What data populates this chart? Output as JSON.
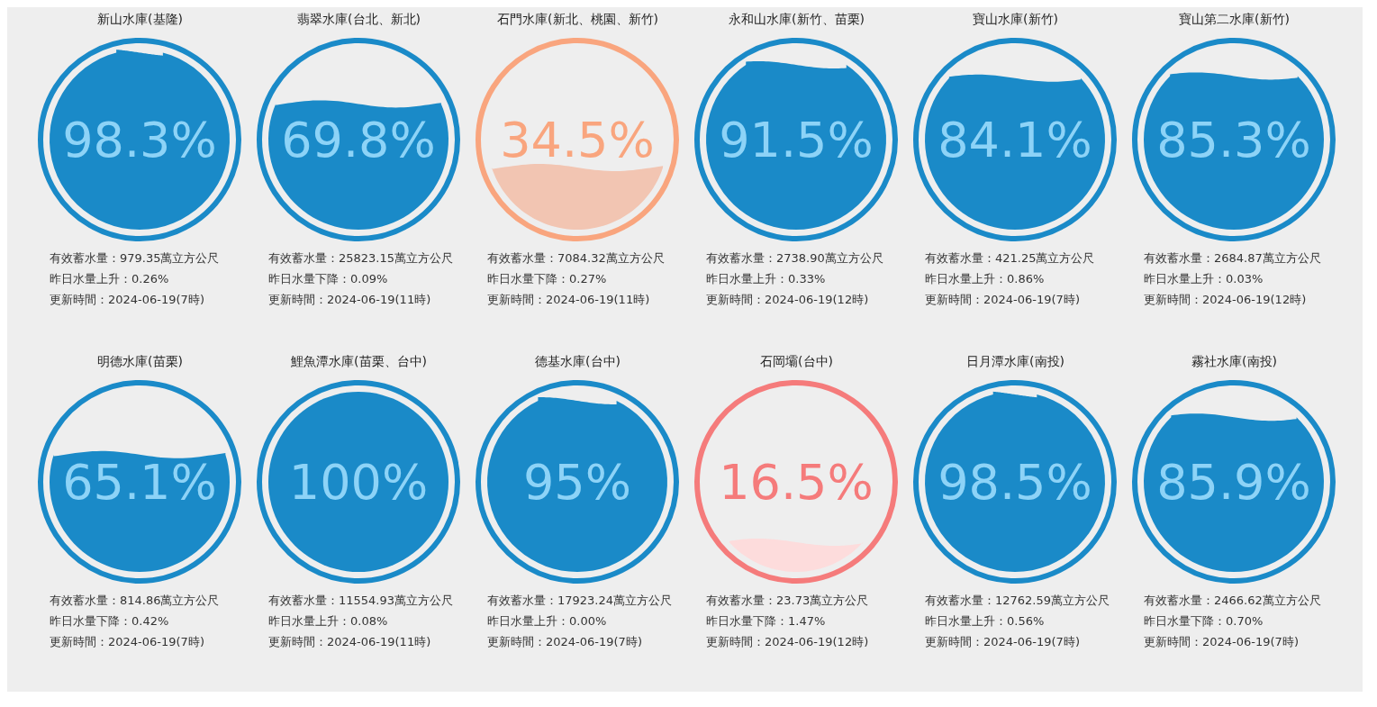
{
  "chart_data": [
    {
      "type": "other",
      "title": "新山水庫(基隆)",
      "values": [
        98.3
      ],
      "value_labels": [
        "98.3%"
      ],
      "color": "#1a8ac8",
      "colors": [
        "#1a8ac8"
      ],
      "annotations": [
        "有效蓄水量：979.35萬立方公尺",
        "昨日水量上升：0.26%",
        "更新時間：2024-06-19(7時)"
      ]
    },
    {
      "type": "other",
      "title": "翡翠水庫(台北、新北)",
      "values": [
        69.8
      ],
      "value_labels": [
        "69.8%"
      ],
      "color": "#1a8ac8",
      "colors": [
        "#1a8ac8"
      ],
      "annotations": [
        "有效蓄水量：25823.15萬立方公尺",
        "昨日水量下降：0.09%",
        "更新時間：2024-06-19(11時)"
      ]
    },
    {
      "type": "other",
      "title": "石門水庫(新北、桃園、新竹)",
      "values": [
        34.5
      ],
      "value_labels": [
        "34.5%"
      ],
      "color": "#f9a57e",
      "colors": [
        "#f2c5b2"
      ],
      "annotations": [
        "有效蓄水量：7084.32萬立方公尺",
        "昨日水量下降：0.27%",
        "更新時間：2024-06-19(11時)"
      ]
    },
    {
      "type": "other",
      "title": "永和山水庫(新竹、苗栗)",
      "values": [
        91.5
      ],
      "value_labels": [
        "91.5%"
      ],
      "color": "#1a8ac8",
      "colors": [
        "#1a8ac8"
      ],
      "annotations": [
        "有效蓄水量：2738.90萬立方公尺",
        "昨日水量上升：0.33%",
        "更新時間：2024-06-19(12時)"
      ]
    },
    {
      "type": "other",
      "title": "寶山水庫(新竹)",
      "values": [
        84.1
      ],
      "value_labels": [
        "84.1%"
      ],
      "color": "#1a8ac8",
      "colors": [
        "#1a8ac8"
      ],
      "annotations": [
        "有效蓄水量：421.25萬立方公尺",
        "昨日水量上升：0.86%",
        "更新時間：2024-06-19(7時)"
      ]
    },
    {
      "type": "other",
      "title": "寶山第二水庫(新竹)",
      "values": [
        85.3
      ],
      "value_labels": [
        "85.3%"
      ],
      "color": "#1a8ac8",
      "colors": [
        "#1a8ac8"
      ],
      "annotations": [
        "有效蓄水量：2684.87萬立方公尺",
        "昨日水量上升：0.03%",
        "更新時間：2024-06-19(12時)"
      ]
    },
    {
      "type": "other",
      "title": "明德水庫(苗栗)",
      "values": [
        65.1
      ],
      "value_labels": [
        "65.1%"
      ],
      "color": "#1a8ac8",
      "colors": [
        "#1a8ac8"
      ],
      "annotations": [
        "有效蓄水量：814.86萬立方公尺",
        "昨日水量下降：0.42%",
        "更新時間：2024-06-19(7時)"
      ]
    },
    {
      "type": "other",
      "title": "鯉魚潭水庫(苗栗、台中)",
      "values": [
        100
      ],
      "value_labels": [
        "100%"
      ],
      "color": "#1a8ac8",
      "colors": [
        "#1a8ac8"
      ],
      "annotations": [
        "有效蓄水量：11554.93萬立方公尺",
        "昨日水量上升：0.08%",
        "更新時間：2024-06-19(11時)"
      ]
    },
    {
      "type": "other",
      "title": "德基水庫(台中)",
      "values": [
        95
      ],
      "value_labels": [
        "95%"
      ],
      "color": "#1a8ac8",
      "colors": [
        "#1a8ac8"
      ],
      "annotations": [
        "有效蓄水量：17923.24萬立方公尺",
        "昨日水量上升：0.00%",
        "更新時間：2024-06-19(7時)"
      ]
    },
    {
      "type": "other",
      "title": "石岡壩(台中)",
      "values": [
        16.5
      ],
      "value_labels": [
        "16.5%"
      ],
      "color": "#f57b7b",
      "colors": [
        "#fddcdc"
      ],
      "annotations": [
        "有效蓄水量：23.73萬立方公尺",
        "昨日水量下降：1.47%",
        "更新時間：2024-06-19(12時)"
      ]
    },
    {
      "type": "other",
      "title": "日月潭水庫(南投)",
      "values": [
        98.5
      ],
      "value_labels": [
        "98.5%"
      ],
      "color": "#1a8ac8",
      "colors": [
        "#1a8ac8"
      ],
      "annotations": [
        "有效蓄水量：12762.59萬立方公尺",
        "昨日水量上升：0.56%",
        "更新時間：2024-06-19(7時)"
      ]
    },
    {
      "type": "other",
      "title": "霧社水庫(南投)",
      "values": [
        85.9
      ],
      "value_labels": [
        "85.9%"
      ],
      "color": "#1a8ac8",
      "colors": [
        "#1a8ac8"
      ],
      "annotations": [
        "有效蓄水量：2466.62萬立方公尺",
        "昨日水量下降：0.70%",
        "更新時間：2024-06-19(7時)"
      ]
    }
  ]
}
